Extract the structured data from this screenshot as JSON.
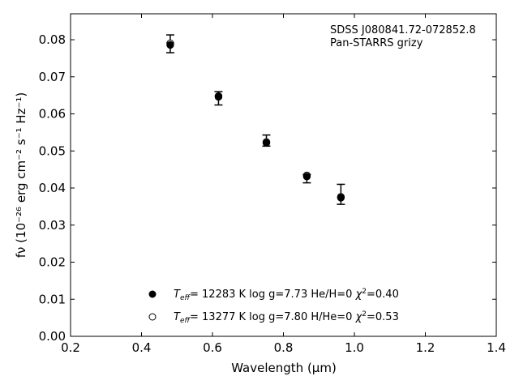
{
  "chart_data": {
    "type": "scatter",
    "title": "",
    "annotation": [
      "SDSS J080841.72-072852.8",
      "Pan-STARRS grizy"
    ],
    "xlabel": "Wavelength (μm)",
    "ylabel": "fν (10⁻²⁶ erg cm⁻² s⁻¹ Hz⁻¹)",
    "xlim": [
      0.2,
      1.4
    ],
    "ylim": [
      0.0,
      0.087
    ],
    "x_ticks": [
      "0.2",
      "0.4",
      "0.6",
      "0.8",
      "1.0",
      "1.2",
      "1.4"
    ],
    "y_ticks": [
      "0.00",
      "0.01",
      "0.02",
      "0.03",
      "0.04",
      "0.05",
      "0.06",
      "0.07",
      "0.08"
    ],
    "grid": false,
    "legend_position": "bottom-center",
    "observed": {
      "x": [
        0.481,
        0.617,
        0.752,
        0.866,
        0.962
      ],
      "y": [
        0.0789,
        0.0642,
        0.0528,
        0.0425,
        0.0383
      ],
      "err": [
        0.0024,
        0.0018,
        0.0015,
        0.0011,
        0.0027
      ]
    },
    "series": [
      {
        "marker": "filled",
        "label_teff": "T",
        "label_sub": "eff",
        "label_rest": "= 12283 K  log g=7.73  He/H=0  ",
        "label_chi": "χ",
        "label_chi_sup": "2",
        "label_chi_val": "=0.40",
        "x": [
          0.481,
          0.617,
          0.752,
          0.866,
          0.962
        ],
        "y": [
          0.0786,
          0.0648,
          0.0522,
          0.0431,
          0.0374
        ]
      },
      {
        "marker": "open",
        "label_teff": "T",
        "label_sub": "eff",
        "label_rest": "= 13277 K  log g=7.80  H/He=0  ",
        "label_chi": "χ",
        "label_chi_sup": "2",
        "label_chi_val": "=0.53",
        "x": [
          0.481,
          0.617,
          0.752,
          0.866,
          0.962
        ],
        "y": [
          0.079,
          0.0646,
          0.0524,
          0.0434,
          0.0376
        ]
      }
    ]
  }
}
